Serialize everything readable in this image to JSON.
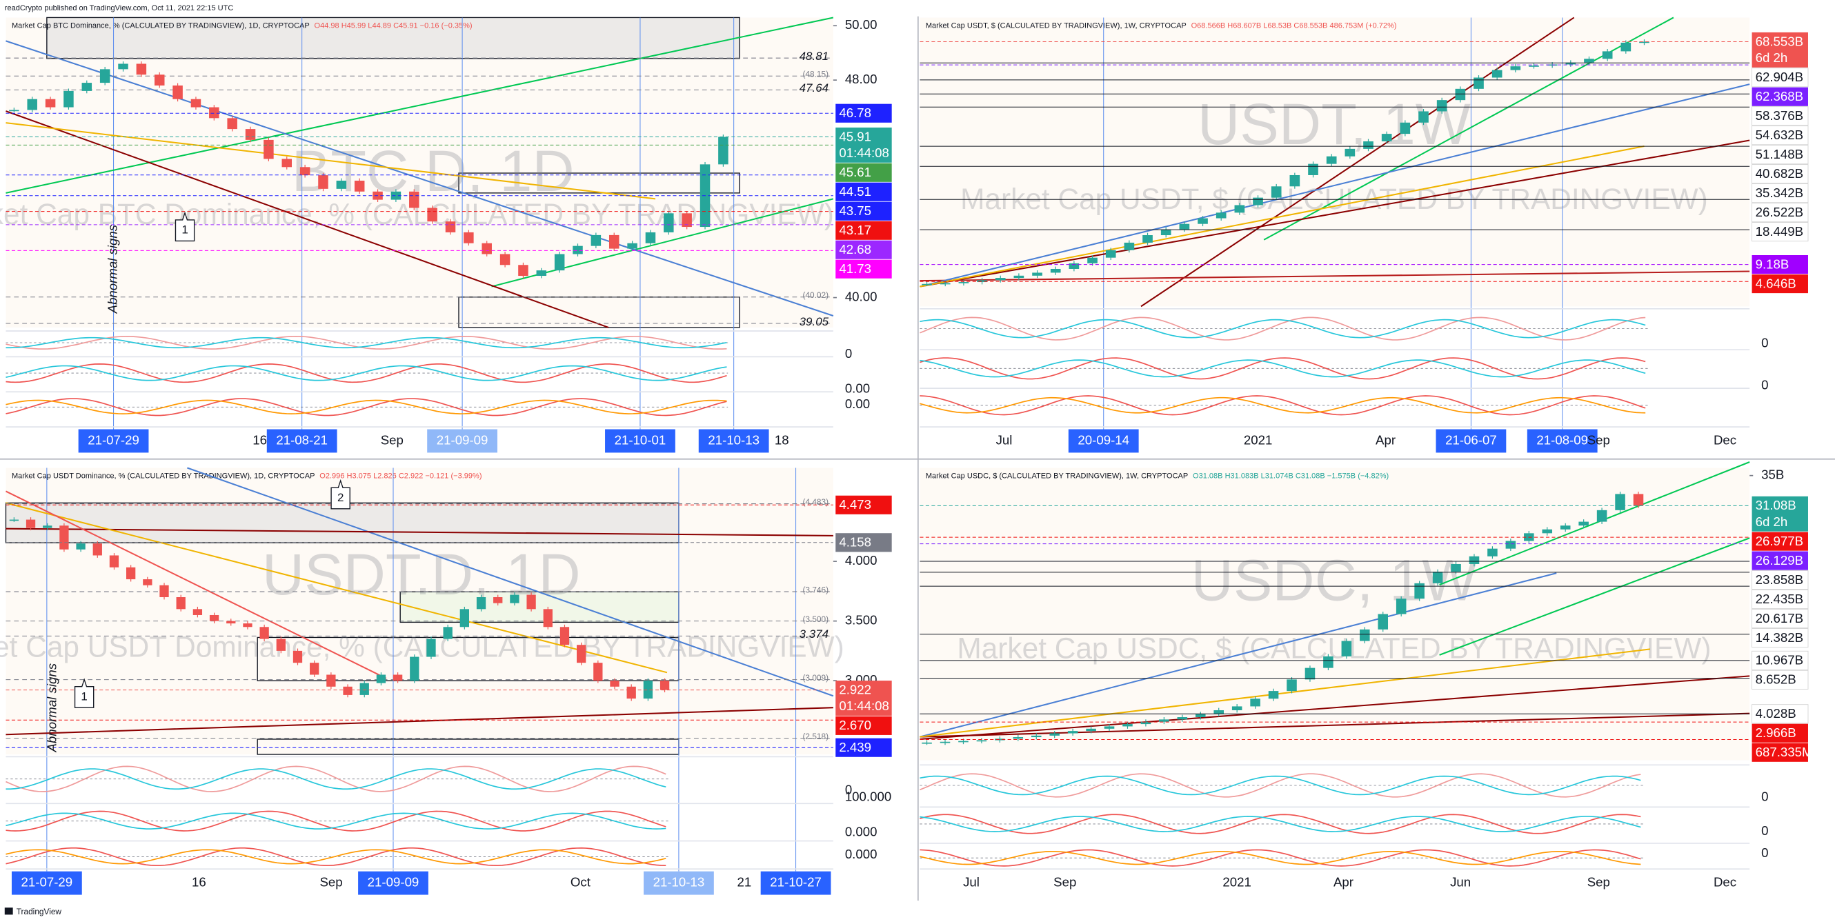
{
  "header": {
    "publisher": "readCrypto published on TradingView.com, Oct 11, 2021 22:15 UTC"
  },
  "footer": {
    "brand": "TradingView"
  },
  "panels": [
    {
      "title": "Market Cap BTC Dominance, % (CALCULATED BY TRADINGVIEW), 1D, CRYPTOCAP",
      "ohlc": "O44.98 H45.99 L44.89 C45.91 −0.16 (−0.35%)",
      "watermark": "BTC.D, 1D",
      "watermark_sub": "Market Cap BTC Dominance, % (CALCULATED BY TRADINGVIEW)",
      "ylim": [
        38.9,
        50.3
      ],
      "yticks": [
        {
          "value": 50,
          "label": "50.00"
        },
        {
          "value": 48,
          "label": "48.00"
        },
        {
          "value": 40,
          "label": "40.00"
        }
      ],
      "level_labels": [
        48.81,
        47.64,
        {
          "value": 48.15,
          "label": "(48.15)"
        },
        {
          "value": 40.02,
          "label": "(40.02)"
        },
        39.05
      ],
      "price_tags": [
        {
          "value": 46.78,
          "label": "46.78",
          "color": "#1e22ff"
        },
        {
          "value": 45.91,
          "label": "45.91",
          "color": "#26a69a",
          "countdown": "01:44:08"
        },
        {
          "value": 45.61,
          "label": "45.61",
          "color": "#43a047"
        },
        {
          "value": 44.51,
          "label": "44.51",
          "color": "#1e22ff"
        },
        {
          "value": 43.75,
          "label": "43.75",
          "color": "#1e22ff"
        },
        {
          "value": 43.17,
          "label": "43.17",
          "color": "#f01010"
        },
        {
          "value": 42.68,
          "label": "42.68",
          "color": "#9c27ff"
        },
        {
          "value": 41.73,
          "label": "41.73",
          "color": "#ff00ff"
        }
      ],
      "indicator_labels": [
        0,
        {
          "value": 0,
          "label": "0.00"
        },
        {
          "value": 0,
          "label": "0.00"
        }
      ],
      "x_labels": [
        {
          "label": "21-07-29",
          "color": "#2962ff"
        },
        16,
        {
          "label": "21-08-21",
          "color": "#2962ff"
        },
        "Sep",
        {
          "label": "21-09-09",
          "color": "#90b8f8"
        },
        {
          "label": "21-10-01",
          "color": "#2962ff"
        },
        {
          "label": "21-10-13",
          "color": "#2962ff"
        },
        18
      ],
      "annotations": [
        "Abnormal signs",
        "1"
      ],
      "closes": [
        46.9,
        47.3,
        47.0,
        47.6,
        47.9,
        48.4,
        48.6,
        48.2,
        47.8,
        47.3,
        47.0,
        46.6,
        46.2,
        45.8,
        45.1,
        44.8,
        44.5,
        44.0,
        44.3,
        43.9,
        43.6,
        43.9,
        43.3,
        42.8,
        42.4,
        42.0,
        41.6,
        41.2,
        40.8,
        41.0,
        41.6,
        41.9,
        42.3,
        41.8,
        42.0,
        42.4,
        43.1,
        42.6,
        44.9,
        45.91
      ]
    },
    {
      "title": "Market Cap USDT, $ (CALCULATED BY TRADINGVIEW), 1W, CRYPTOCAP",
      "ohlc": "O68.566B H68.607B L68.53B C68.553B 486.753M (+0.72%)",
      "watermark": "USDT, 1W",
      "watermark_sub": "Market Cap USDT, $ (CALCULATED BY TRADINGVIEW)",
      "ylim": [
        -2,
        75
      ],
      "yticks": [],
      "level_labels": [],
      "price_tags": [
        {
          "value": 68.553,
          "label": "68.553B",
          "color": "#ef5350",
          "countdown": "6d 2h"
        },
        {
          "value": 62.904,
          "label": "62.904B",
          "color": "#ffffff"
        },
        {
          "value": 62.368,
          "label": "62.368B",
          "color": "#7b1fff"
        },
        {
          "value": 58.376,
          "label": "58.376B",
          "color": "#ffffff"
        },
        {
          "value": 54.632,
          "label": "54.632B",
          "color": "#ffffff"
        },
        {
          "value": 51.148,
          "label": "51.148B",
          "color": "#ffffff"
        },
        {
          "value": 40.682,
          "label": "40.682B",
          "color": "#ffffff"
        },
        {
          "value": 35.342,
          "label": "35.342B",
          "color": "#ffffff"
        },
        {
          "value": 26.522,
          "label": "26.522B",
          "color": "#ffffff"
        },
        {
          "value": 18.449,
          "label": "18.449B",
          "color": "#ffffff"
        },
        {
          "value": 9.18,
          "label": "9.18B",
          "color": "#a000ff"
        },
        {
          "value": 4.646,
          "label": "4.646B",
          "color": "#f01010"
        }
      ],
      "indicator_labels": [
        0,
        0
      ],
      "x_labels": [
        "Jul",
        {
          "label": "20-09-14",
          "color": "#2962ff"
        },
        2021,
        "Apr",
        {
          "label": "21-06-07",
          "color": "#2962ff"
        },
        {
          "label": "21-08-09",
          "color": "#2962ff"
        },
        "Sep",
        "Dec"
      ],
      "annotations": [],
      "closes": [
        4.0,
        4.2,
        4.5,
        5.0,
        5.6,
        6.2,
        7.0,
        8.0,
        9.5,
        11,
        13,
        15,
        17,
        18.5,
        20,
        21.5,
        23,
        25,
        27,
        30,
        33,
        36,
        38,
        40,
        42,
        44,
        47,
        50,
        53,
        56,
        59,
        61,
        62,
        62.2,
        62.5,
        63,
        64,
        66,
        68.3,
        68.553
      ]
    },
    {
      "title": "Market Cap USDT Dominance, % (CALCULATED BY TRADINGVIEW), 1D, CRYPTOCAP",
      "ohlc": "O2.996 H3.075 L2.826 C2.922 −0.121 (−3.99%)",
      "watermark": "USDT.D, 1D",
      "watermark_sub": "Market Cap USDT Dominance, % (CALCULATED BY TRADINGVIEW)",
      "ylim": [
        2.382,
        4.784
      ],
      "yticks": [
        {
          "value": 4,
          "label": "4.000"
        },
        {
          "value": 3.5,
          "label": "3.500"
        },
        {
          "value": 3,
          "label": "3.000"
        }
      ],
      "level_labels": [
        {
          "value": 4.483,
          "label": "(4.483)"
        },
        {
          "value": 3.746,
          "label": "(3.746)"
        },
        {
          "value": 3.5,
          "label": "(3.500)"
        },
        3.374,
        {
          "value": 3.009,
          "label": "(3.009)"
        },
        {
          "value": 2.518,
          "label": "(2.518)"
        }
      ],
      "price_tags": [
        {
          "value": 4.473,
          "label": "4.473",
          "color": "#f01010"
        },
        {
          "value": 4.158,
          "label": "4.158",
          "color": "#787b86"
        },
        {
          "value": 2.922,
          "label": "2.922",
          "color": "#ef5350",
          "countdown": "01:44:08"
        },
        {
          "value": 2.67,
          "label": "2.670",
          "color": "#f01010"
        },
        {
          "value": 2.439,
          "label": "2.439",
          "color": "#1e22ff"
        }
      ],
      "indicator_labels": [
        0,
        {
          "value": 100,
          "label": "100.000"
        },
        {
          "value": 0,
          "label": "0.000"
        },
        {
          "value": 0,
          "label": "0.000"
        }
      ],
      "x_labels": [
        {
          "label": "21-07-29",
          "color": "#2962ff"
        },
        16,
        "Sep",
        {
          "label": "21-09-09",
          "color": "#2962ff"
        },
        "Oct",
        {
          "label": "21-10-13",
          "color": "#90b8f8"
        },
        21,
        {
          "label": "21-10-27",
          "color": "#2962ff"
        }
      ],
      "annotations": [
        "Abnormal signs",
        "1",
        "2"
      ],
      "closes": [
        4.35,
        4.28,
        4.3,
        4.1,
        4.15,
        4.05,
        3.95,
        3.85,
        3.8,
        3.7,
        3.6,
        3.55,
        3.5,
        3.48,
        3.45,
        3.35,
        3.25,
        3.15,
        3.05,
        2.95,
        2.88,
        2.98,
        3.05,
        3.0,
        3.2,
        3.35,
        3.45,
        3.6,
        3.7,
        3.65,
        3.72,
        3.6,
        3.45,
        3.3,
        3.15,
        3.0,
        2.95,
        2.85,
        3.0,
        2.922
      ]
    },
    {
      "title": "Market Cap USDC, $ (CALCULATED BY TRADINGVIEW), 1W, CRYPTOCAP",
      "ohlc": "O31.08B H31.083B L31.074B C31.08B −1.575B (−4.82%)",
      "watermark": "USDC, 1W",
      "watermark_sub": "Market Cap USDC, $ (CALCULATED BY TRADINGVIEW)",
      "ylim": [
        -2,
        36
      ],
      "yticks": [
        {
          "value": 35,
          "label": "35B"
        }
      ],
      "level_labels": [],
      "price_tags": [
        {
          "value": 31.08,
          "label": "31.08B",
          "color": "#26a69a",
          "countdown": "6d 2h"
        },
        {
          "value": 26.977,
          "label": "26.977B",
          "color": "#f01010"
        },
        {
          "value": 26.129,
          "label": "26.129B",
          "color": "#7b1fff"
        },
        {
          "value": 23.858,
          "label": "23.858B",
          "color": "#ffffff"
        },
        {
          "value": 22.435,
          "label": "22.435B",
          "color": "#ffffff"
        },
        {
          "value": 20.617,
          "label": "20.617B",
          "color": "#ffffff"
        },
        {
          "value": 14.382,
          "label": "14.382B",
          "color": "#ffffff"
        },
        {
          "value": 10.967,
          "label": "10.967B",
          "color": "#ffffff"
        },
        {
          "value": 8.652,
          "label": "8.652B",
          "color": "#ffffff"
        },
        {
          "value": 4.028,
          "label": "4.028B",
          "color": "#ffffff"
        },
        {
          "value": 2.966,
          "label": "2.966B",
          "color": "#f01010"
        },
        {
          "value": 0.687335,
          "label": "687.335M",
          "color": "#f01010"
        }
      ],
      "indicator_labels": [
        0,
        0,
        0
      ],
      "x_labels": [
        "Jul",
        "Sep",
        2021,
        "Apr",
        "Jun",
        "Sep",
        "Dec"
      ],
      "annotations": [],
      "closes": [
        0.3,
        0.4,
        0.5,
        0.6,
        0.8,
        1.0,
        1.2,
        1.5,
        1.8,
        2.1,
        2.4,
        2.7,
        3.0,
        3.3,
        3.6,
        4.0,
        4.5,
        5.0,
        6.0,
        7.0,
        8.5,
        10.0,
        11.5,
        13.5,
        15.0,
        17.0,
        19.0,
        21.0,
        22.5,
        23.5,
        24.5,
        25.5,
        26.5,
        27.5,
        28.0,
        28.5,
        29.0,
        30.5,
        32.6,
        31.08
      ]
    }
  ]
}
